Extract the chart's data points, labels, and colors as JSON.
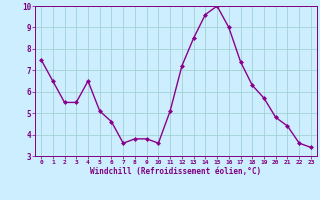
{
  "x": [
    0,
    1,
    2,
    3,
    4,
    5,
    6,
    7,
    8,
    9,
    10,
    11,
    12,
    13,
    14,
    15,
    16,
    17,
    18,
    19,
    20,
    21,
    22,
    23
  ],
  "y": [
    7.5,
    6.5,
    5.5,
    5.5,
    6.5,
    5.1,
    4.6,
    3.6,
    3.8,
    3.8,
    3.6,
    5.1,
    7.2,
    8.5,
    9.6,
    10.0,
    9.0,
    7.4,
    6.3,
    5.7,
    4.8,
    4.4,
    3.6,
    3.4
  ],
  "line_color": "#8B008B",
  "marker": "D",
  "marker_size": 2,
  "line_width": 1.0,
  "xlabel": "Windchill (Refroidissement éolien,°C)",
  "xlim": [
    -0.5,
    23.5
  ],
  "ylim": [
    3,
    10
  ],
  "yticks": [
    3,
    4,
    5,
    6,
    7,
    8,
    9,
    10
  ],
  "xticks": [
    0,
    1,
    2,
    3,
    4,
    5,
    6,
    7,
    8,
    9,
    10,
    11,
    12,
    13,
    14,
    15,
    16,
    17,
    18,
    19,
    20,
    21,
    22,
    23
  ],
  "bg_color": "#cceeff",
  "grid_color": "#99cccc",
  "xlabel_color": "#800080",
  "tick_color": "#800080",
  "xtick_fontsize": 4.5,
  "ytick_fontsize": 5.5,
  "xlabel_fontsize": 5.5
}
